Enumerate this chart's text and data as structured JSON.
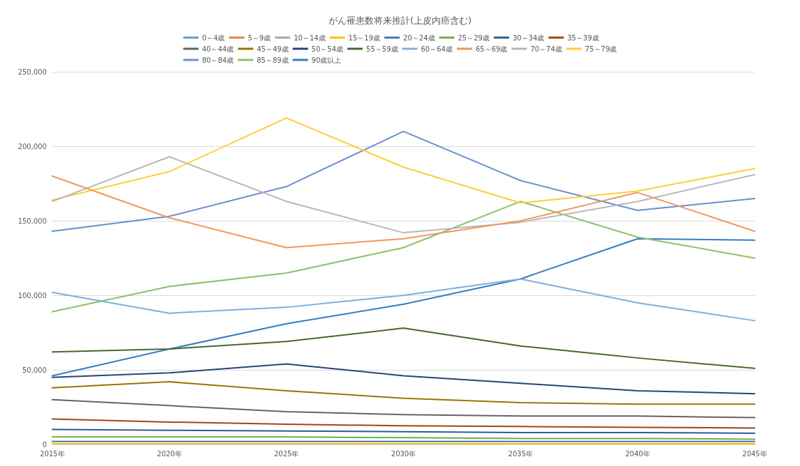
{
  "chart_data": {
    "type": "line",
    "title": "がん罹患数将来推計(上皮内癌含む)",
    "categories": [
      "2015年",
      "2020年",
      "2025年",
      "2030年",
      "2035年",
      "2040年",
      "2045年"
    ],
    "ylim": [
      0,
      250000
    ],
    "yticks": [
      {
        "value": 0,
        "label": "0"
      },
      {
        "value": 50000,
        "label": "50,000"
      },
      {
        "value": 100000,
        "label": "100,000"
      },
      {
        "value": 150000,
        "label": "150,000"
      },
      {
        "value": 200000,
        "label": "200,000"
      },
      {
        "value": 250000,
        "label": "250,000"
      }
    ],
    "grid": "y",
    "legend": "top",
    "marker": "none",
    "line_style": "solid",
    "series": [
      {
        "name": "0～4歳",
        "color": "#5b9bd5",
        "values": [
          null,
          null,
          null,
          null,
          null,
          null,
          null
        ]
      },
      {
        "name": "5～9歳",
        "color": "#ed7d31",
        "values": [
          null,
          null,
          null,
          null,
          null,
          null,
          null
        ]
      },
      {
        "name": "10～14歳",
        "color": "#a5a5a5",
        "values": [
          null,
          null,
          null,
          null,
          null,
          null,
          null
        ]
      },
      {
        "name": "15～19歳",
        "color": "#ffc000",
        "values": [
          500,
          500,
          500,
          500,
          500,
          500,
          500
        ]
      },
      {
        "name": "20～24歳",
        "color": "#4472c4",
        "values": [
          2000,
          2000,
          2000,
          2000,
          2000,
          2000,
          2000
        ]
      },
      {
        "name": "25～29歳",
        "color": "#70ad47",
        "values": [
          5000,
          5000,
          5000,
          4500,
          4000,
          4000,
          3500
        ]
      },
      {
        "name": "30～34歳",
        "color": "#255e91",
        "values": [
          10000,
          9500,
          9000,
          8500,
          8000,
          8000,
          7500
        ]
      },
      {
        "name": "35～39歳",
        "color": "#9e480e",
        "values": [
          17000,
          15000,
          13500,
          12500,
          12000,
          11500,
          11000
        ]
      },
      {
        "name": "40～44歳",
        "color": "#636363",
        "values": [
          30000,
          26000,
          22000,
          20000,
          19000,
          19000,
          18000
        ]
      },
      {
        "name": "45～49歳",
        "color": "#997300",
        "values": [
          38000,
          42000,
          36000,
          31000,
          28000,
          27000,
          27000
        ]
      },
      {
        "name": "50～54歳",
        "color": "#264478",
        "values": [
          45000,
          48000,
          54000,
          46000,
          41000,
          36000,
          34000
        ]
      },
      {
        "name": "55～59歳",
        "color": "#43682b",
        "values": [
          62000,
          64000,
          69000,
          78000,
          66000,
          58000,
          51000
        ]
      },
      {
        "name": "60～64歳",
        "color": "#7cafdd",
        "values": [
          102000,
          88000,
          92000,
          100000,
          111000,
          95000,
          83000
        ]
      },
      {
        "name": "65～69歳",
        "color": "#f1975a",
        "values": [
          180000,
          152000,
          132000,
          138000,
          150000,
          169000,
          143000
        ]
      },
      {
        "name": "70～74歳",
        "color": "#b7b7b7",
        "values": [
          163000,
          193000,
          163000,
          142000,
          149000,
          163000,
          181000
        ]
      },
      {
        "name": "75～79歳",
        "color": "#ffcd33",
        "values": [
          164000,
          183000,
          219000,
          186000,
          162000,
          170000,
          185000
        ]
      },
      {
        "name": "80～84歳",
        "color": "#698ed0",
        "values": [
          143000,
          153000,
          173000,
          210000,
          177000,
          157000,
          165000
        ]
      },
      {
        "name": "85～89歳",
        "color": "#8cc168",
        "values": [
          89000,
          106000,
          115000,
          132000,
          163000,
          139000,
          125000
        ]
      },
      {
        "name": "90歳以上",
        "color": "#327dc2",
        "values": [
          46000,
          64000,
          81000,
          94000,
          111000,
          138000,
          137000
        ]
      }
    ]
  }
}
